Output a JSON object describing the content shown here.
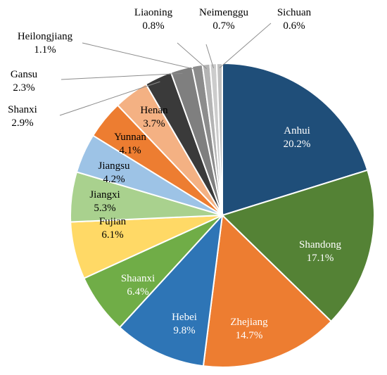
{
  "chart_data": {
    "type": "pie",
    "title": "",
    "legend": "none",
    "slices": [
      {
        "label": "Anhui",
        "value": 20.2,
        "text": "20.2%",
        "color": "#1f4e79",
        "text_color": "#ffffff"
      },
      {
        "label": "Shandong",
        "value": 17.1,
        "text": "17.1%",
        "color": "#548235",
        "text_color": "#ffffff"
      },
      {
        "label": "Zhejiang",
        "value": 14.7,
        "text": "14.7%",
        "color": "#ed7d31",
        "text_color": "#ffffff"
      },
      {
        "label": "Hebei",
        "value": 9.8,
        "text": "9.8%",
        "color": "#2e75b6",
        "text_color": "#ffffff"
      },
      {
        "label": "Shaanxi",
        "value": 6.4,
        "text": "6.4%",
        "color": "#70ad47",
        "text_color": "#ffffff"
      },
      {
        "label": "Fujian",
        "value": 6.1,
        "text": "6.1%",
        "color": "#ffd966",
        "text_color": "#000000"
      },
      {
        "label": "Jiangxi",
        "value": 5.3,
        "text": "5.3%",
        "color": "#a9d18e",
        "text_color": "#000000"
      },
      {
        "label": "Jiangsu",
        "value": 4.2,
        "text": "4.2%",
        "color": "#9dc3e6",
        "text_color": "#000000"
      },
      {
        "label": "Yunnan",
        "value": 4.1,
        "text": "4.1%",
        "color": "#ed7d31",
        "text_color": "#000000"
      },
      {
        "label": "Henan",
        "value": 3.7,
        "text": "3.7%",
        "color": "#f4b183",
        "text_color": "#000000"
      },
      {
        "label": "Shanxi",
        "value": 2.9,
        "text": "2.9%",
        "color": "#3a3a3a",
        "text_color": "#000000"
      },
      {
        "label": "Gansu",
        "value": 2.3,
        "text": "2.3%",
        "color": "#7f7f7f",
        "text_color": "#000000"
      },
      {
        "label": "Heilongjiang",
        "value": 1.1,
        "text": "1.1%",
        "color": "#8c8c8c",
        "text_color": "#000000"
      },
      {
        "label": "Liaoning",
        "value": 0.8,
        "text": "0.8%",
        "color": "#b4b4b4",
        "text_color": "#000000"
      },
      {
        "label": "Neimenggu",
        "value": 0.7,
        "text": "0.7%",
        "color": "#cccccc",
        "text_color": "#000000"
      },
      {
        "label": "Sichuan",
        "value": 0.6,
        "text": "0.6%",
        "color": "#c0c0c0",
        "text_color": "#000000"
      }
    ]
  }
}
